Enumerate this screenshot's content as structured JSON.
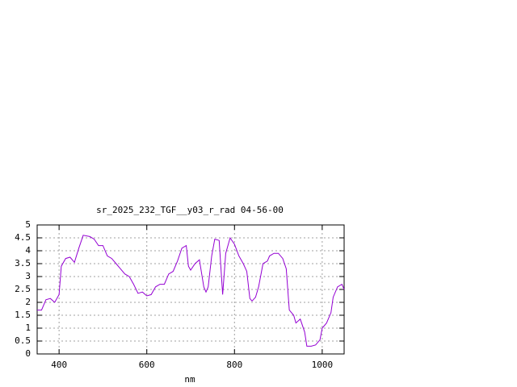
{
  "chart_data": {
    "type": "line",
    "title": "sr_2025_232_TGF__y03_r_rad 04-56-00",
    "xlabel": "nm",
    "x": [
      350,
      360,
      370,
      380,
      390,
      400,
      405,
      415,
      425,
      435,
      445,
      455,
      470,
      480,
      490,
      500,
      510,
      520,
      530,
      540,
      550,
      560,
      570,
      580,
      590,
      600,
      610,
      620,
      630,
      640,
      650,
      660,
      670,
      680,
      690,
      695,
      700,
      710,
      720,
      730,
      735,
      740,
      748,
      755,
      765,
      773,
      780,
      790,
      800,
      810,
      820,
      828,
      835,
      840,
      848,
      855,
      865,
      875,
      880,
      890,
      900,
      910,
      918,
      925,
      935,
      940,
      950,
      960,
      965,
      975,
      985,
      995,
      1000,
      1010,
      1020,
      1025,
      1035,
      1045,
      1050
    ],
    "series": [
      {
        "color": "#9400d3",
        "values": [
          1.7,
          1.7,
          2.1,
          2.15,
          2.0,
          2.3,
          3.4,
          3.7,
          3.75,
          3.55,
          4.1,
          4.6,
          4.55,
          4.45,
          4.2,
          4.2,
          3.8,
          3.7,
          3.5,
          3.3,
          3.1,
          3.0,
          2.7,
          2.35,
          2.4,
          2.25,
          2.3,
          2.6,
          2.7,
          2.7,
          3.1,
          3.2,
          3.6,
          4.1,
          4.2,
          3.4,
          3.25,
          3.5,
          3.65,
          2.6,
          2.4,
          2.6,
          3.8,
          4.45,
          4.4,
          2.3,
          3.9,
          4.5,
          4.25,
          3.8,
          3.5,
          3.2,
          2.15,
          2.05,
          2.2,
          2.6,
          3.5,
          3.6,
          3.8,
          3.9,
          3.9,
          3.7,
          3.3,
          1.7,
          1.5,
          1.2,
          1.35,
          0.85,
          0.3,
          0.3,
          0.35,
          0.55,
          1.0,
          1.2,
          1.6,
          2.2,
          2.6,
          2.7,
          2.5
        ]
      }
    ],
    "xlim": [
      350,
      1050
    ],
    "xticks": [
      400,
      600,
      800,
      1000
    ],
    "ylim": [
      0,
      5
    ],
    "yticks": [
      0,
      0.5,
      1,
      1.5,
      2,
      2.5,
      3,
      3.5,
      4,
      4.5,
      5
    ],
    "grid": true
  }
}
